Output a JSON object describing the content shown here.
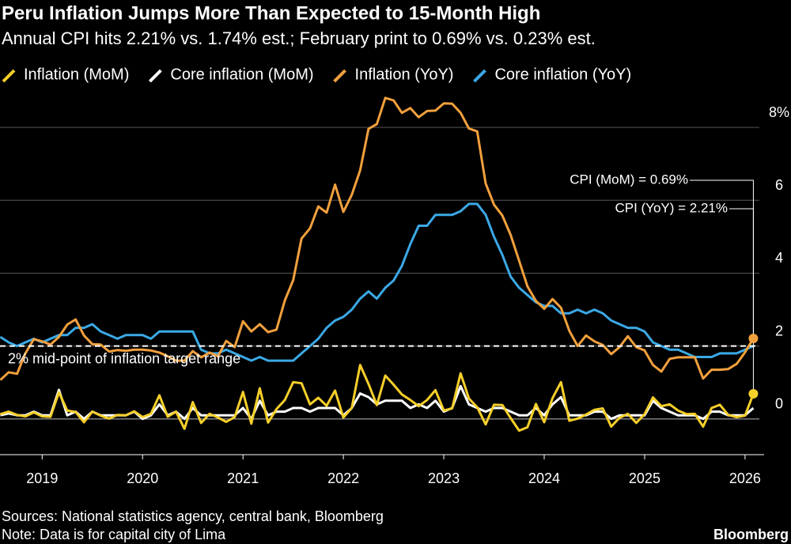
{
  "chart_data": {
    "type": "line",
    "title": "Peru Inflation Jumps More Than Expected to 15-Month High",
    "subtitle": "Annual CPI hits 2.21% vs. 1.74% est.; February print to 0.69% vs. 0.23% est.",
    "x": [
      2018.583,
      2018.667,
      2018.75,
      2018.833,
      2018.917,
      2019,
      2019.083,
      2019.167,
      2019.25,
      2019.333,
      2019.417,
      2019.5,
      2019.583,
      2019.667,
      2019.75,
      2019.833,
      2019.917,
      2020,
      2020.083,
      2020.167,
      2020.25,
      2020.333,
      2020.417,
      2020.5,
      2020.583,
      2020.667,
      2020.75,
      2020.833,
      2020.917,
      2021,
      2021.083,
      2021.167,
      2021.25,
      2021.333,
      2021.417,
      2021.5,
      2021.583,
      2021.667,
      2021.75,
      2021.833,
      2021.917,
      2022,
      2022.083,
      2022.167,
      2022.25,
      2022.333,
      2022.417,
      2022.5,
      2022.583,
      2022.667,
      2022.75,
      2022.833,
      2022.917,
      2023,
      2023.083,
      2023.167,
      2023.25,
      2023.333,
      2023.417,
      2023.5,
      2023.583,
      2023.667,
      2023.75,
      2023.833,
      2023.917,
      2024,
      2024.083,
      2024.167,
      2024.25,
      2024.333,
      2024.417,
      2024.5,
      2024.583,
      2024.667,
      2024.75,
      2024.833,
      2024.917,
      2025,
      2025.083,
      2025.167,
      2025.25,
      2025.333,
      2025.417,
      2025.5,
      2025.583,
      2025.667,
      2025.75,
      2025.833,
      2025.917,
      2026,
      2026.083
    ],
    "series": [
      {
        "name": "Inflation (MoM)",
        "color": "#f5cf2a",
        "values": [
          0.13,
          0.2,
          0.11,
          0.07,
          0.18,
          0.07,
          0.06,
          0.73,
          0.23,
          0.19,
          -0.09,
          0.2,
          0.09,
          0.01,
          0.11,
          0.1,
          0.21,
          0.05,
          0.14,
          0.65,
          0.06,
          0.2,
          -0.27,
          0.46,
          -0.11,
          0.14,
          0.04,
          -0.08,
          0.05,
          0.74,
          -0.13,
          0.84,
          -0.1,
          0.27,
          0.52,
          1.01,
          0.98,
          0.4,
          0.58,
          0.36,
          0.78,
          0.04,
          0.3,
          1.48,
          0.96,
          0.38,
          1.19,
          0.94,
          0.67,
          0.52,
          0.35,
          0.52,
          0.79,
          0.23,
          0.29,
          1.25,
          0.56,
          0.32,
          -0.15,
          0.39,
          0.38,
          0.02,
          -0.32,
          -0.23,
          0.41,
          -0.09,
          0.57,
          1.01,
          -0.05,
          0.01,
          0.12,
          0.25,
          0.29,
          -0.21,
          0.03,
          0.14,
          -0.11,
          0.13,
          0.59,
          0.35,
          0.4,
          0.23,
          0.13,
          0.14,
          -0.21,
          0.3,
          0.39,
          0.11,
          0.05,
          0.09,
          0.69
        ]
      },
      {
        "name": "Core inflation (MoM)",
        "color": "#ffffff",
        "values": [
          0.1,
          0.15,
          0.1,
          0.1,
          0.2,
          0.1,
          0.1,
          0.8,
          0.1,
          0.2,
          0,
          0.2,
          0.1,
          0.1,
          0.1,
          0.1,
          0.2,
          0,
          0.1,
          0.4,
          0.1,
          0.2,
          0,
          0.3,
          0.1,
          0.1,
          0.1,
          0.1,
          0.1,
          0.3,
          0,
          0.5,
          0.1,
          0.2,
          0.2,
          0.3,
          0.3,
          0.2,
          0.3,
          0.3,
          0.3,
          0.1,
          0.3,
          0.7,
          0.6,
          0.4,
          0.5,
          0.5,
          0.5,
          0.3,
          0.4,
          0.3,
          0.5,
          0.2,
          0.3,
          0.9,
          0.4,
          0.3,
          0.2,
          0.3,
          0.3,
          0.2,
          0.1,
          0.1,
          0.3,
          0.1,
          0.4,
          0.6,
          0.1,
          0.1,
          0.1,
          0.2,
          0.2,
          0,
          0.1,
          0.1,
          0.1,
          0.1,
          0.5,
          0.3,
          0.2,
          0.1,
          0.1,
          0.1,
          0,
          0.2,
          0.2,
          0.1,
          0.1,
          0.1,
          0.3
        ]
      },
      {
        "name": "Inflation (YoY)",
        "color": "#f2a03d",
        "values": [
          1.07,
          1.28,
          1.24,
          1.8,
          2.19,
          2.13,
          2.04,
          2.25,
          2.59,
          2.73,
          2.29,
          2.05,
          2.04,
          1.85,
          1.89,
          1.87,
          1.9,
          1.9,
          1.88,
          1.82,
          1.72,
          1.6,
          1.6,
          1.86,
          1.69,
          1.82,
          1.72,
          2.14,
          1.97,
          2.68,
          2.4,
          2.6,
          2.38,
          2.45,
          3.25,
          3.81,
          4.95,
          5.23,
          5.83,
          5.66,
          6.43,
          5.68,
          6.15,
          6.82,
          7.96,
          8.09,
          8.81,
          8.74,
          8.4,
          8.53,
          8.28,
          8.45,
          8.46,
          8.66,
          8.65,
          8.4,
          7.97,
          7.89,
          6.46,
          5.88,
          5.58,
          5.04,
          4.34,
          3.64,
          3.24,
          3.02,
          3.29,
          3.05,
          2.42,
          2,
          2.29,
          2.13,
          2.03,
          1.78,
          1.97,
          2.27,
          1.97,
          1.88,
          1.48,
          1.3,
          1.65,
          1.69,
          1.69,
          1.69,
          1.11,
          1.35,
          1.35,
          1.37,
          1.51,
          1.83,
          2.21
        ]
      },
      {
        "name": "Core inflation (YoY)",
        "color": "#3ba9e6",
        "values": [
          2.25,
          2.1,
          2,
          2.1,
          2.2,
          2.1,
          2.2,
          2.3,
          2.3,
          2.5,
          2.5,
          2.6,
          2.4,
          2.3,
          2.2,
          2.3,
          2.3,
          2.3,
          2.2,
          2.4,
          2.4,
          2.4,
          2.4,
          2.4,
          1.9,
          1.8,
          1.8,
          1.9,
          1.8,
          1.7,
          1.6,
          1.7,
          1.6,
          1.6,
          1.6,
          1.6,
          1.8,
          2,
          2.2,
          2.5,
          2.7,
          2.8,
          3,
          3.3,
          3.5,
          3.3,
          3.6,
          3.8,
          4.2,
          4.8,
          5.3,
          5.3,
          5.6,
          5.6,
          5.6,
          5.7,
          5.9,
          5.9,
          5.6,
          5,
          4.5,
          3.9,
          3.6,
          3.4,
          3.2,
          3.1,
          3.1,
          2.9,
          2.9,
          3,
          2.9,
          3,
          2.9,
          2.7,
          2.6,
          2.5,
          2.5,
          2.4,
          2.1,
          2,
          1.9,
          1.9,
          1.8,
          1.7,
          1.7,
          1.7,
          1.8,
          1.8,
          1.8,
          1.9,
          2
        ]
      }
    ],
    "xlim": [
      2018.58,
      2026.19
    ],
    "xticks": [
      2019,
      2020,
      2021,
      2022,
      2023,
      2024,
      2025,
      2026
    ],
    "ylim": [
      -0.98,
      9
    ],
    "yticks": [
      0,
      2,
      4,
      6,
      {
        "value": 8,
        "label": "8%"
      }
    ],
    "grid": true,
    "reference_line": {
      "value": 2,
      "label": "2% mid-point of inflation target range"
    },
    "annotations": [
      "CPI (MoM) = 0.69%",
      "CPI (YoY) = 2.21%"
    ],
    "footnotes": [
      "Sources: National statistics agency, central bank, Bloomberg",
      "Note: Data is for capital city of Lima"
    ],
    "brand": "Bloomberg"
  }
}
